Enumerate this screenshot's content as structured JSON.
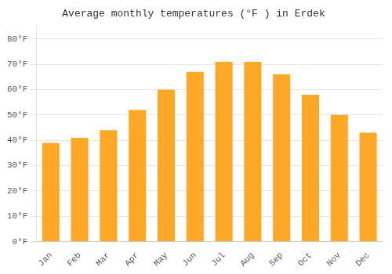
{
  "chart_data": {
    "type": "bar",
    "title": "Average monthly temperatures (°F ) in Erdek",
    "categories": [
      "Jan",
      "Feb",
      "Mar",
      "Apr",
      "May",
      "Jun",
      "Jul",
      "Aug",
      "Sep",
      "Oct",
      "Nov",
      "Dec"
    ],
    "values": [
      39,
      41,
      44,
      52,
      60,
      67,
      71,
      71,
      66,
      58,
      50,
      43
    ],
    "color": "#FFA726",
    "ylim": [
      0,
      85
    ],
    "yticks": [
      {
        "value": 0,
        "label": "0°F"
      },
      {
        "value": 10,
        "label": "10°F"
      },
      {
        "value": 20,
        "label": "20°F"
      },
      {
        "value": 30,
        "label": "30°F"
      },
      {
        "value": 40,
        "label": "40°F"
      },
      {
        "value": 50,
        "label": "50°F"
      },
      {
        "value": 60,
        "label": "60°F"
      },
      {
        "value": 70,
        "label": "70°F"
      },
      {
        "value": 80,
        "label": "80°F"
      }
    ],
    "grid": true
  }
}
